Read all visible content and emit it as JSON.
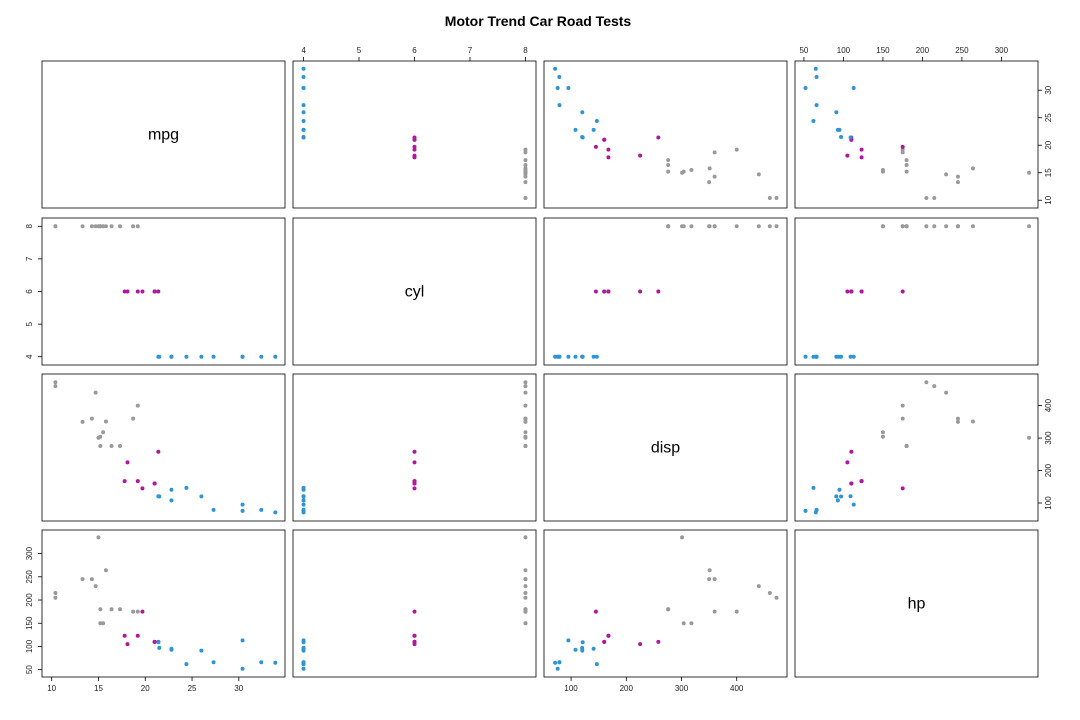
{
  "chart_data": {
    "type": "scatter",
    "title": "Motor Trend Car Road Tests",
    "variables": [
      "mpg",
      "cyl",
      "disp",
      "hp"
    ],
    "group_variable": "cyl",
    "groups": [
      4,
      6,
      8
    ],
    "colors": {
      "4": "#2E94D6",
      "6": "#B0169E",
      "8": "#9A9A9A"
    },
    "axis_ticks": {
      "mpg": [
        10,
        15,
        20,
        25,
        30
      ],
      "cyl": [
        4,
        5,
        6,
        7,
        8
      ],
      "disp": [
        100,
        200,
        300,
        400
      ],
      "hp": [
        50,
        100,
        150,
        200,
        250,
        300
      ]
    },
    "axis_ranges": {
      "mpg": [
        9.5,
        34.4
      ],
      "cyl": [
        3.9,
        8.1
      ],
      "disp": [
        60,
        482
      ],
      "hp": [
        45,
        340
      ]
    },
    "points": [
      {
        "mpg": 21.0,
        "cyl": 6,
        "disp": 160.0,
        "hp": 110
      },
      {
        "mpg": 21.0,
        "cyl": 6,
        "disp": 160.0,
        "hp": 110
      },
      {
        "mpg": 22.8,
        "cyl": 4,
        "disp": 108.0,
        "hp": 93
      },
      {
        "mpg": 21.4,
        "cyl": 6,
        "disp": 258.0,
        "hp": 110
      },
      {
        "mpg": 18.7,
        "cyl": 8,
        "disp": 360.0,
        "hp": 175
      },
      {
        "mpg": 18.1,
        "cyl": 6,
        "disp": 225.0,
        "hp": 105
      },
      {
        "mpg": 14.3,
        "cyl": 8,
        "disp": 360.0,
        "hp": 245
      },
      {
        "mpg": 24.4,
        "cyl": 4,
        "disp": 146.7,
        "hp": 62
      },
      {
        "mpg": 22.8,
        "cyl": 4,
        "disp": 140.8,
        "hp": 95
      },
      {
        "mpg": 19.2,
        "cyl": 6,
        "disp": 167.6,
        "hp": 123
      },
      {
        "mpg": 17.8,
        "cyl": 6,
        "disp": 167.6,
        "hp": 123
      },
      {
        "mpg": 16.4,
        "cyl": 8,
        "disp": 275.8,
        "hp": 180
      },
      {
        "mpg": 17.3,
        "cyl": 8,
        "disp": 275.8,
        "hp": 180
      },
      {
        "mpg": 15.2,
        "cyl": 8,
        "disp": 275.8,
        "hp": 180
      },
      {
        "mpg": 10.4,
        "cyl": 8,
        "disp": 472.0,
        "hp": 205
      },
      {
        "mpg": 10.4,
        "cyl": 8,
        "disp": 460.0,
        "hp": 215
      },
      {
        "mpg": 14.7,
        "cyl": 8,
        "disp": 440.0,
        "hp": 230
      },
      {
        "mpg": 32.4,
        "cyl": 4,
        "disp": 78.7,
        "hp": 66
      },
      {
        "mpg": 30.4,
        "cyl": 4,
        "disp": 75.7,
        "hp": 52
      },
      {
        "mpg": 33.9,
        "cyl": 4,
        "disp": 71.1,
        "hp": 65
      },
      {
        "mpg": 21.5,
        "cyl": 4,
        "disp": 120.1,
        "hp": 97
      },
      {
        "mpg": 15.5,
        "cyl": 8,
        "disp": 318.0,
        "hp": 150
      },
      {
        "mpg": 15.2,
        "cyl": 8,
        "disp": 304.0,
        "hp": 150
      },
      {
        "mpg": 13.3,
        "cyl": 8,
        "disp": 350.0,
        "hp": 245
      },
      {
        "mpg": 19.2,
        "cyl": 8,
        "disp": 400.0,
        "hp": 175
      },
      {
        "mpg": 27.3,
        "cyl": 4,
        "disp": 79.0,
        "hp": 66
      },
      {
        "mpg": 26.0,
        "cyl": 4,
        "disp": 120.3,
        "hp": 91
      },
      {
        "mpg": 30.4,
        "cyl": 4,
        "disp": 95.1,
        "hp": 113
      },
      {
        "mpg": 15.8,
        "cyl": 8,
        "disp": 351.0,
        "hp": 264
      },
      {
        "mpg": 19.7,
        "cyl": 6,
        "disp": 145.0,
        "hp": 175
      },
      {
        "mpg": 15.0,
        "cyl": 8,
        "disp": 301.0,
        "hp": 335
      },
      {
        "mpg": 21.4,
        "cyl": 4,
        "disp": 121.0,
        "hp": 109
      }
    ]
  }
}
